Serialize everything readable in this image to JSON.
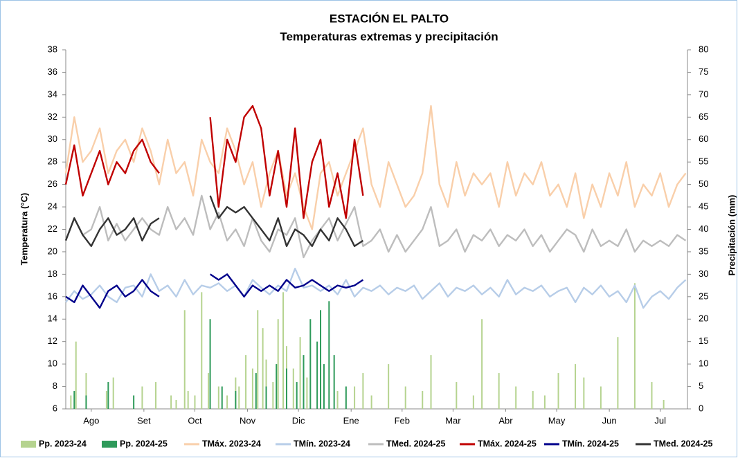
{
  "chart_data": {
    "type": "line",
    "title": "ESTACIÓN EL PALTO",
    "subtitle": "Temperaturas extremas y precipitación",
    "y_label": "Temperatura (°C)",
    "y2_label": "Precipitación (mm)",
    "xlim": [
      0,
      366
    ],
    "xticks": [
      {
        "value": 15,
        "label": "Ago"
      },
      {
        "value": 46,
        "label": "Set"
      },
      {
        "value": 76,
        "label": "Oct"
      },
      {
        "value": 107,
        "label": "Nov"
      },
      {
        "value": 137,
        "label": "Dic"
      },
      {
        "value": 168,
        "label": "Ene"
      },
      {
        "value": 198,
        "label": "Feb"
      },
      {
        "value": 228,
        "label": "Mar"
      },
      {
        "value": 259,
        "label": "Abr"
      },
      {
        "value": 289,
        "label": "May"
      },
      {
        "value": 320,
        "label": "Jun"
      },
      {
        "value": 350,
        "label": "Jul"
      }
    ],
    "ylim": [
      6,
      38
    ],
    "yticks": [
      6,
      8,
      10,
      12,
      14,
      16,
      18,
      20,
      22,
      24,
      26,
      28,
      30,
      32,
      34,
      36,
      38
    ],
    "y2lim": [
      0,
      80
    ],
    "y2ticks": [
      0,
      5,
      10,
      15,
      20,
      25,
      30,
      35,
      40,
      45,
      50,
      55,
      60,
      65,
      70,
      75,
      80
    ],
    "series": [
      {
        "name": "Pp. 2023-24",
        "type": "bar",
        "axis": "y2",
        "color": "#b5d38f",
        "x": [
          3,
          6,
          12,
          24,
          28,
          45,
          53,
          62,
          65,
          70,
          72,
          76,
          80,
          84,
          90,
          95,
          100,
          102,
          106,
          110,
          113,
          116,
          118,
          122,
          125,
          128,
          130,
          134,
          138,
          142,
          150,
          160,
          170,
          175,
          180,
          190,
          200,
          210,
          215,
          230,
          240,
          245,
          255,
          265,
          275,
          282,
          290,
          300,
          305,
          315,
          325,
          335,
          345,
          352
        ],
        "values": [
          3,
          15,
          8,
          4,
          7,
          5,
          6,
          3,
          2,
          22,
          4,
          3,
          26,
          8,
          5,
          3,
          7,
          5,
          12,
          9,
          22,
          18,
          11,
          6,
          20,
          26,
          14,
          9,
          16,
          7,
          10,
          4,
          5,
          8,
          3,
          10,
          5,
          4,
          12,
          6,
          3,
          20,
          8,
          5,
          4,
          3,
          8,
          10,
          7,
          5,
          16,
          28,
          6,
          2
        ]
      },
      {
        "name": "Pp. 2024-25",
        "type": "bar",
        "axis": "y2",
        "color": "#2e9a5a",
        "x": [
          5,
          12,
          25,
          40,
          85,
          92,
          100,
          112,
          118,
          124,
          130,
          136,
          140,
          144,
          148,
          150,
          152,
          155,
          158,
          165
        ],
        "values": [
          4,
          3,
          6,
          3,
          20,
          5,
          4,
          8,
          5,
          10,
          9,
          6,
          12,
          20,
          15,
          22,
          10,
          24,
          12,
          5
        ]
      },
      {
        "name": "TMáx. 2023-24",
        "type": "line",
        "color": "#f9cfaa",
        "x": [
          0,
          5,
          10,
          15,
          20,
          25,
          30,
          35,
          40,
          45,
          50,
          55,
          60,
          65,
          70,
          75,
          80,
          85,
          90,
          95,
          100,
          105,
          110,
          115,
          120,
          125,
          130,
          135,
          140,
          145,
          150,
          155,
          160,
          165,
          170,
          175,
          180,
          185,
          190,
          195,
          200,
          205,
          210,
          215,
          220,
          225,
          230,
          235,
          240,
          245,
          250,
          255,
          260,
          265,
          270,
          275,
          280,
          285,
          290,
          295,
          300,
          305,
          310,
          315,
          320,
          325,
          330,
          335,
          340,
          345,
          350,
          355,
          360,
          365
        ],
        "values": [
          27,
          32,
          28,
          29,
          31,
          27,
          29,
          30,
          28,
          31,
          29,
          26,
          30,
          27,
          28,
          25,
          30,
          28,
          27,
          31,
          29,
          26,
          28,
          24,
          27,
          29,
          25,
          27,
          24,
          22,
          27,
          28,
          25,
          27,
          29,
          31,
          26,
          24,
          28,
          26,
          24,
          25,
          27,
          33,
          26,
          24,
          28,
          25,
          27,
          26,
          27,
          24,
          28,
          25,
          27,
          26,
          28,
          25,
          26,
          24,
          27,
          23,
          26,
          24,
          27,
          25,
          28,
          24,
          26,
          25,
          27,
          24,
          26,
          27
        ]
      },
      {
        "name": "TMín. 2023-24",
        "type": "line",
        "color": "#b7cde8",
        "x": [
          0,
          5,
          10,
          15,
          20,
          25,
          30,
          35,
          40,
          45,
          50,
          55,
          60,
          65,
          70,
          75,
          80,
          85,
          90,
          95,
          100,
          105,
          110,
          115,
          120,
          125,
          130,
          135,
          140,
          145,
          150,
          155,
          160,
          165,
          170,
          175,
          180,
          185,
          190,
          195,
          200,
          205,
          210,
          215,
          220,
          225,
          230,
          235,
          240,
          245,
          250,
          255,
          260,
          265,
          270,
          275,
          280,
          285,
          290,
          295,
          300,
          305,
          310,
          315,
          320,
          325,
          330,
          335,
          340,
          345,
          350,
          355,
          360,
          365
        ],
        "values": [
          15.5,
          16.5,
          15.8,
          16.2,
          17,
          16,
          15.5,
          16.8,
          17,
          16,
          18,
          16.5,
          17,
          16,
          17.5,
          16.2,
          17,
          16.8,
          17.2,
          16.5,
          17,
          16,
          17.5,
          16.8,
          16.2,
          17,
          16.5,
          18.5,
          16.8,
          17,
          16.5,
          17,
          16.2,
          17.5,
          16,
          16.8,
          16.5,
          17,
          16.2,
          16.8,
          16.5,
          17,
          15.8,
          16.5,
          17.2,
          16,
          16.8,
          16.5,
          17,
          16.2,
          16.8,
          16,
          17.5,
          16.2,
          16.8,
          16.5,
          17,
          16,
          16.5,
          16.8,
          15.5,
          16.8,
          16.2,
          17,
          16,
          16.5,
          15.5,
          17,
          15,
          16,
          16.5,
          15.8,
          16.8,
          17.5
        ]
      },
      {
        "name": "TMed. 2024-25",
        "type": "line",
        "color": "#bdbdbd",
        "x": [
          0,
          5,
          10,
          15,
          20,
          25,
          30,
          35,
          40,
          45,
          50,
          55,
          60,
          65,
          70,
          75,
          80,
          85,
          90,
          95,
          100,
          105,
          110,
          115,
          120,
          125,
          130,
          135,
          140,
          145,
          150,
          155,
          160,
          165,
          170,
          175,
          180,
          185,
          190,
          195,
          200,
          205,
          210,
          215,
          220,
          225,
          230,
          235,
          240,
          245,
          250,
          255,
          260,
          265,
          270,
          275,
          280,
          285,
          290,
          295,
          300,
          305,
          310,
          315,
          320,
          325,
          330,
          335,
          340,
          345,
          350,
          355,
          360,
          365
        ],
        "values": [
          21,
          23,
          21.5,
          22,
          24,
          21,
          22.5,
          21,
          22,
          23,
          22,
          21.5,
          24,
          22,
          23,
          21.5,
          25,
          22,
          23.5,
          21,
          22,
          20.5,
          23,
          21,
          20,
          22,
          21.5,
          23,
          19.5,
          21,
          22,
          23,
          21,
          22.5,
          24,
          20.5,
          21,
          22,
          20,
          21.5,
          20,
          21,
          22,
          24,
          20.5,
          21,
          22,
          20,
          21.5,
          21,
          22,
          20.5,
          21.5,
          21,
          22,
          20.5,
          21.5,
          20,
          21,
          22,
          21.5,
          20,
          22,
          20.5,
          21,
          20.5,
          22,
          20,
          21,
          20.5,
          21,
          20.5,
          21.5,
          21
        ]
      },
      {
        "name": "TMáx. 2024-25",
        "type": "line",
        "color": "#c00000",
        "x": [
          0,
          5,
          10,
          15,
          20,
          25,
          30,
          35,
          40,
          45,
          50,
          55,
          60,
          65,
          70,
          75,
          80,
          85,
          90,
          95,
          100,
          105,
          110,
          115,
          120,
          125,
          130,
          135,
          140,
          145,
          150,
          155,
          160,
          165,
          170,
          175
        ],
        "values": [
          26,
          29.5,
          25,
          27,
          29,
          26,
          28,
          27,
          29,
          30,
          28,
          27,
          null,
          null,
          null,
          null,
          null,
          32,
          24,
          30,
          28,
          32,
          33,
          31,
          25,
          29,
          24,
          31,
          23,
          28,
          30,
          24,
          27,
          23,
          30,
          25
        ]
      },
      {
        "name": "TMín. 2024-25",
        "type": "line",
        "color": "#00008b",
        "x": [
          0,
          5,
          10,
          15,
          20,
          25,
          30,
          35,
          40,
          45,
          50,
          55,
          60,
          65,
          70,
          75,
          80,
          85,
          90,
          95,
          100,
          105,
          110,
          115,
          120,
          125,
          130,
          135,
          140,
          145,
          150,
          155,
          160,
          165,
          170,
          175
        ],
        "values": [
          16,
          15.5,
          17,
          16,
          15,
          16.5,
          17,
          16,
          16.5,
          17.5,
          16.5,
          16,
          null,
          null,
          null,
          null,
          null,
          18,
          17.5,
          18,
          17,
          16,
          17,
          16.5,
          17,
          16.5,
          17.5,
          16.8,
          17,
          17.5,
          17,
          16.5,
          17,
          16.8,
          17,
          17.5
        ]
      },
      {
        "name": "TMed. 2024-25",
        "type": "line",
        "color": "#333333",
        "x": [
          0,
          5,
          10,
          15,
          20,
          25,
          30,
          35,
          40,
          45,
          50,
          55,
          60,
          65,
          70,
          75,
          80,
          85,
          90,
          95,
          100,
          105,
          110,
          115,
          120,
          125,
          130,
          135,
          140,
          145,
          150,
          155,
          160,
          165,
          170,
          175
        ],
        "values": [
          21,
          23,
          21.5,
          20.5,
          22,
          23,
          21.5,
          22,
          23,
          21,
          22.5,
          23,
          null,
          null,
          null,
          null,
          null,
          25,
          23,
          24,
          23.5,
          24,
          23,
          22,
          21,
          23,
          20.5,
          22,
          21.5,
          20.5,
          22,
          21,
          23,
          22,
          20.5,
          21
        ]
      }
    ]
  }
}
